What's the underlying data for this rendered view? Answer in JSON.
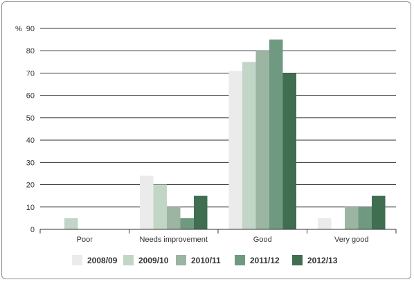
{
  "chart_data": {
    "type": "bar",
    "y_unit_label": "%",
    "ylim": [
      0,
      90
    ],
    "yticks": [
      0,
      10,
      20,
      30,
      40,
      50,
      60,
      70,
      80,
      90
    ],
    "grid": true,
    "legend_position": "bottom",
    "categories": [
      "Poor",
      "Needs improvement",
      "Good",
      "Very good"
    ],
    "series": [
      {
        "name": "2008/09",
        "color": "#ebebeb",
        "values": [
          0,
          24,
          71,
          5
        ]
      },
      {
        "name": "2009/10",
        "color": "#c2d6c7",
        "values": [
          5,
          20,
          75,
          0
        ]
      },
      {
        "name": "2010/11",
        "color": "#9bb5a2",
        "values": [
          0,
          10,
          80,
          10
        ]
      },
      {
        "name": "2011/12",
        "color": "#6f9a81",
        "values": [
          0,
          5,
          85,
          10
        ]
      },
      {
        "name": "2012/13",
        "color": "#3f6e51",
        "values": [
          0,
          15,
          70,
          15
        ]
      }
    ]
  }
}
